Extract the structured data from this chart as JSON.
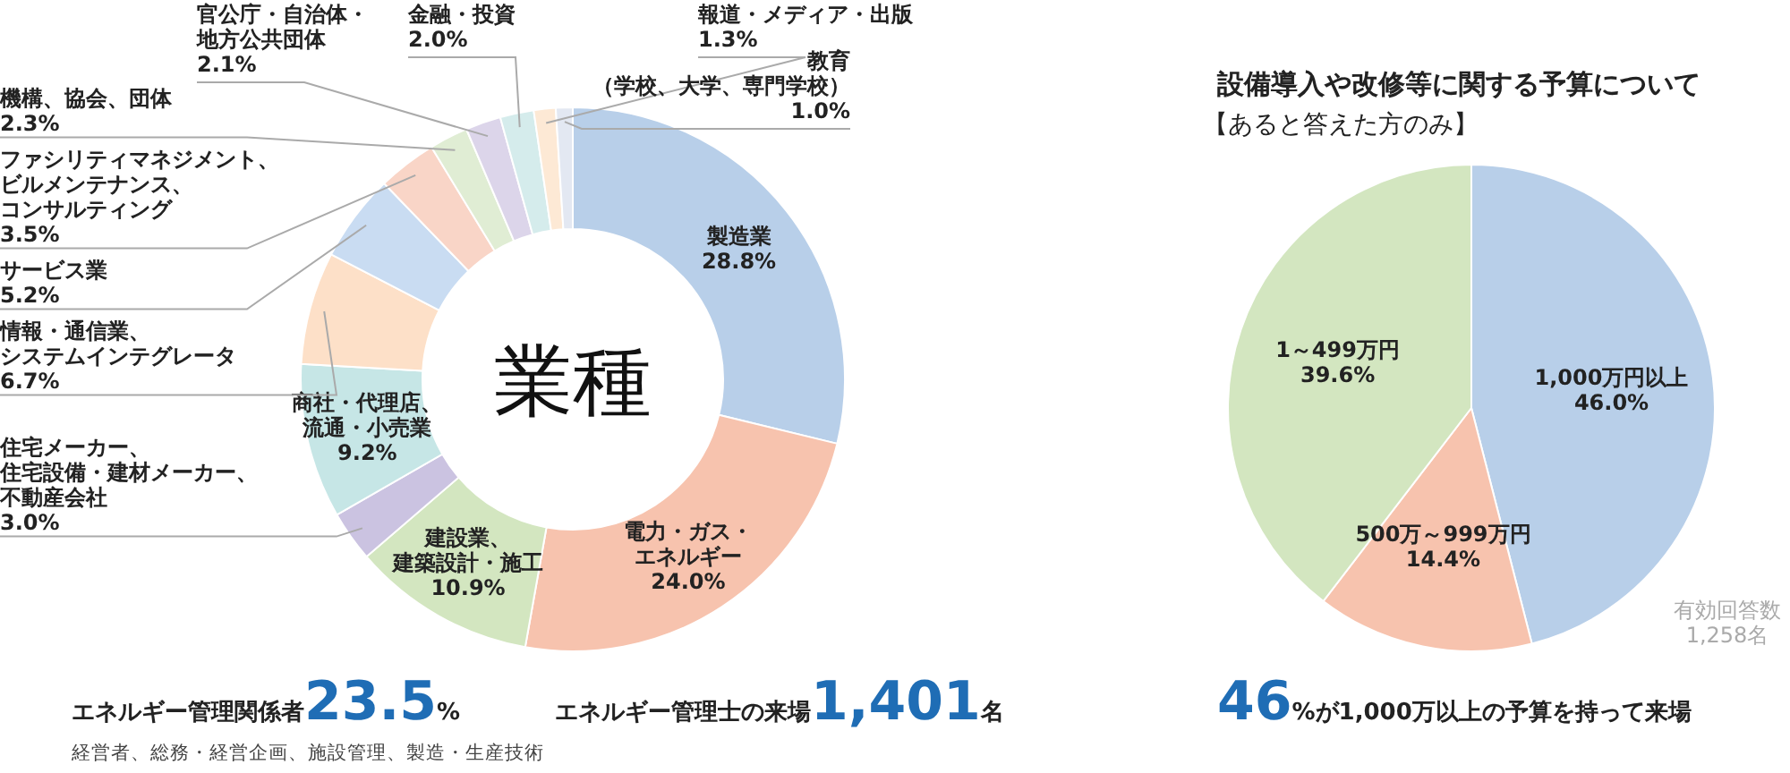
{
  "chart_data": [
    {
      "type": "donut",
      "title": "業種",
      "categories": [
        "製造業",
        "電力・ガス・エネルギー",
        "建設業、建築設計・施工",
        "住宅メーカー、住宅設備・建材メーカー、不動産会社",
        "商社・代理店、流通・小売業",
        "情報・通信業、システムインテグレータ",
        "サービス業",
        "ファシリティマネジメント、ビルメンテナンス、コンサルティング",
        "機構、協会、団体",
        "官公庁・自治体・地方公共団体",
        "金融・投資",
        "報道・メディア・出版",
        "教育（学校、大学、専門学校）"
      ],
      "values": [
        28.8,
        24.0,
        10.9,
        3.0,
        9.2,
        6.7,
        5.2,
        3.5,
        2.3,
        2.1,
        2.0,
        1.3,
        1.0
      ],
      "value_labels": [
        "28.8%",
        "24.0%",
        "10.9%",
        "3.0%",
        "9.2%",
        "6.7%",
        "5.2%",
        "3.5%",
        "2.3%",
        "2.1%",
        "2.0%",
        "1.3%",
        "1.0%"
      ],
      "colors": [
        "#b8cfe9",
        "#f7c3ae",
        "#d3e6c0",
        "#cbc3e1",
        "#c6e6e6",
        "#fde0c8",
        "#c9dcf2",
        "#f9d5c7",
        "#e0edd4",
        "#dcd5ea",
        "#d5ecec",
        "#fde9d5",
        "#e3e8f2"
      ],
      "annotations": [
        "エネルギー管理関係者23.5%",
        "エネルギー管理士の来場1,401名",
        "経営者、総務・経営企画、施設管理、製造・生産技術"
      ]
    },
    {
      "type": "pie",
      "title": "設備導入や改修等に関する予算について",
      "subtitle": "【あると答えた方のみ】",
      "categories": [
        "1,000万円以上",
        "500万～999万円",
        "1～499万円"
      ],
      "values": [
        46.0,
        14.4,
        39.6
      ],
      "value_labels": [
        "46.0%",
        "14.4%",
        "39.6%"
      ],
      "colors": [
        "#b8cfe9",
        "#f7c3ae",
        "#d3e6c0"
      ],
      "annotations": [
        "有効回答数1,258名",
        "46%が1,000万以上の予算を持って来場"
      ]
    }
  ]
}
